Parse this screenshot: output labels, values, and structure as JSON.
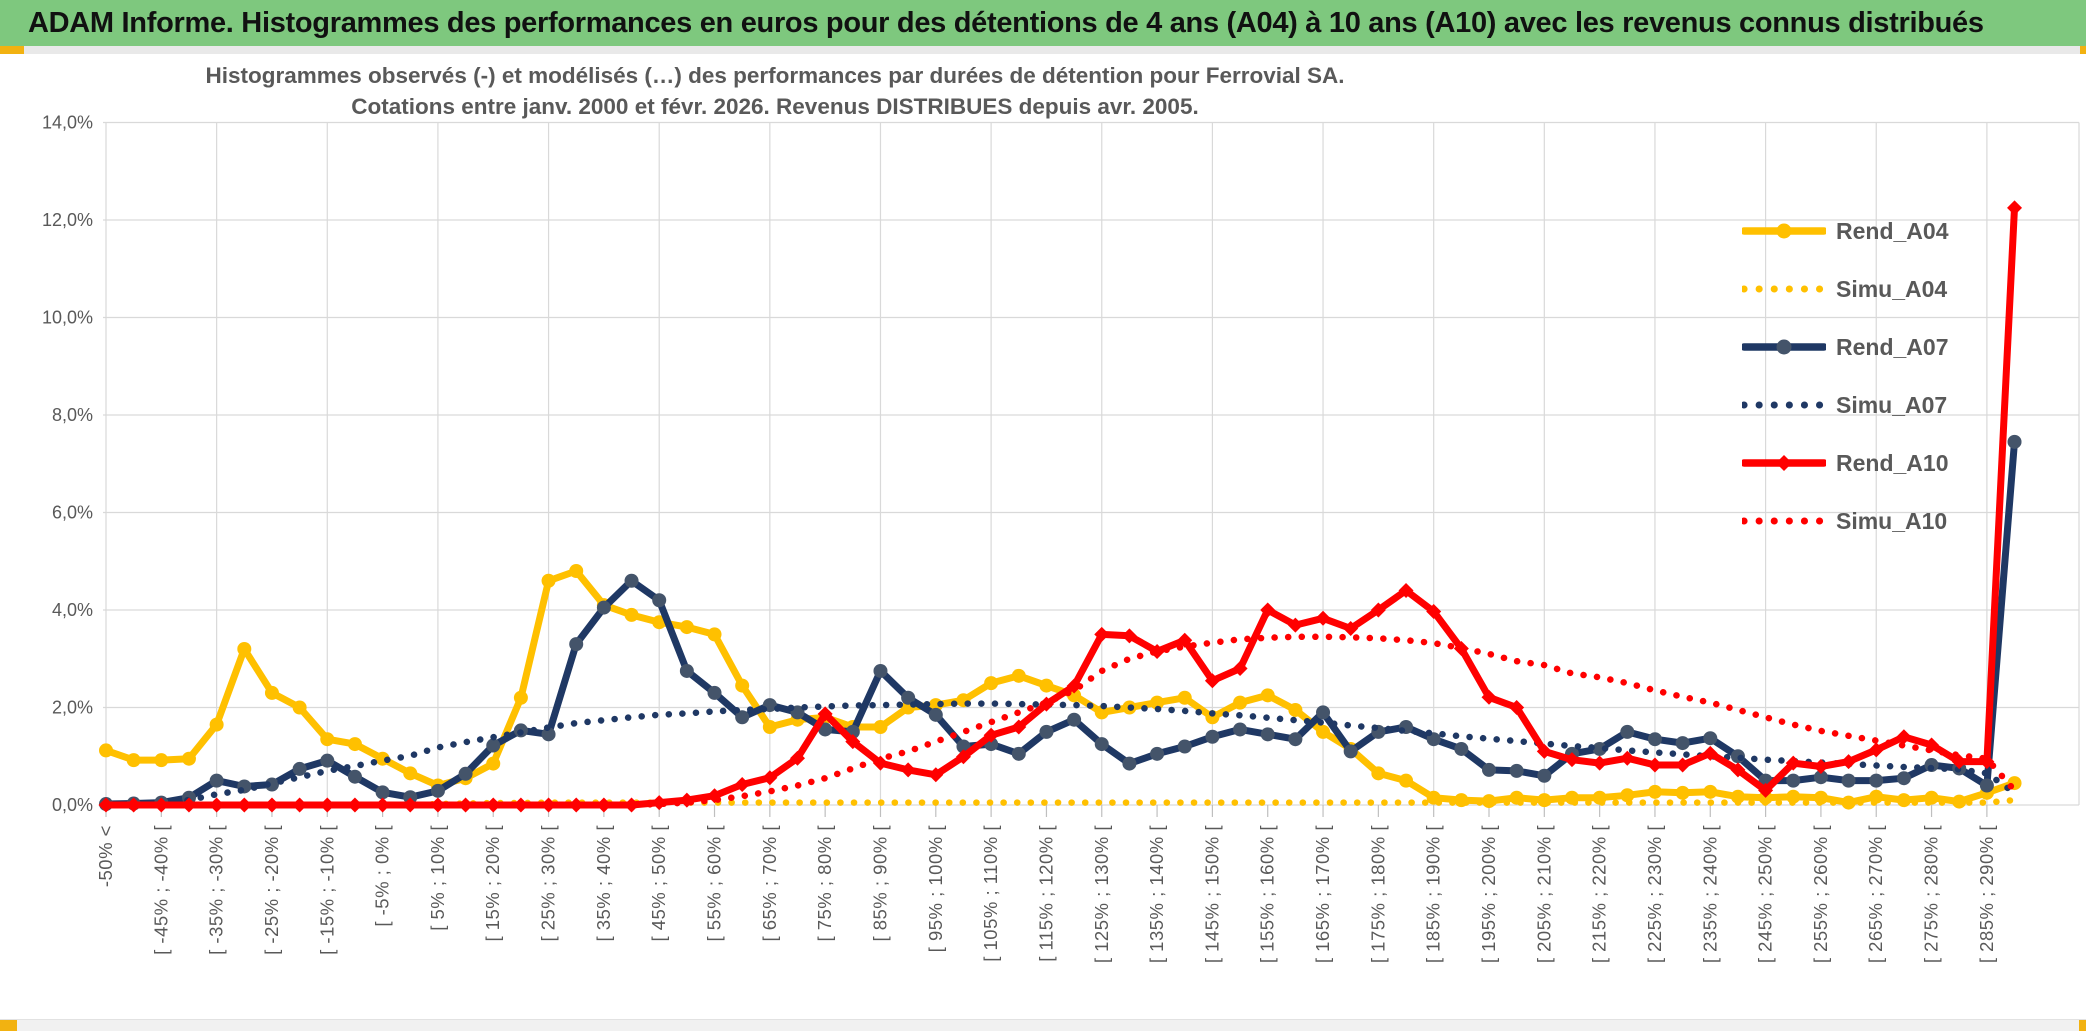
{
  "window": {
    "header_title": "ADAM Informe. Histogrammes des performances en euros pour des détentions de 4 ans (A04) à 10 ans (A10) avec les revenus connus distribués",
    "colors": {
      "header_green": "#7ec87e",
      "accent_gold": "#f2b211",
      "grid": "#d9d9d9",
      "axis_text": "#595959",
      "series_gold": "#FFC000",
      "series_navy": "#1F3864",
      "series_navy_marker": "#44546A",
      "series_red": "#FF0000"
    }
  },
  "chart_data": {
    "type": "line",
    "title_line1": "Histogrammes observés (-) et modélisés (…) des performances par durées de détention pour Ferrovial SA.",
    "title_line2": "Cotations entre janv. 2000 et févr. 2026. Revenus DISTRIBUES depuis avr. 2005.",
    "ylabel": "",
    "xlabel": "",
    "ylim": [
      0,
      14
    ],
    "y_tick_labels": [
      "0,0%",
      "2,0%",
      "4,0%",
      "6,0%",
      "8,0%",
      "10,0%",
      "12,0%",
      "14,0%"
    ],
    "grid": true,
    "legend_position": "right-upper",
    "categories": [
      "-50% <",
      "",
      "[ -45% ; -40% [",
      "",
      "[ -35% ; -30% [",
      "",
      "[ -25% ; -20% [",
      "",
      "[ -15% ; -10% [",
      "",
      "[ -5% ; 0% [",
      "",
      "[ 5% ; 10% [",
      "",
      "[ 15% ; 20% [",
      "",
      "[ 25% ; 30% [",
      "",
      "[ 35% ; 40% [",
      "",
      "[ 45% ; 50% [",
      "",
      "[ 55% ; 60% [",
      "",
      "[ 65% ; 70% [",
      "",
      "[ 75% ; 80% [",
      "",
      "[ 85% ; 90% [",
      "",
      "[ 95% ; 100% [",
      "",
      "[ 105% ; 110% [",
      "",
      "[ 115% ; 120% [",
      "",
      "[ 125% ; 130% [",
      "",
      "[ 135% ; 140% [",
      "",
      "[ 145% ; 150% [",
      "",
      "[ 155% ; 160% [",
      "",
      "[ 165% ; 170% [",
      "",
      "[ 175% ; 180% [",
      "",
      "[ 185% ; 190% [",
      "",
      "[ 195% ; 200% [",
      "",
      "[ 205% ; 210% [",
      "",
      "[ 215% ; 220% [",
      "",
      "[ 225% ; 230% [",
      "",
      "[ 235% ; 240% [",
      "",
      "[ 245% ; 250% [",
      "",
      "[ 255% ; 260% [",
      "",
      "[ 265% ; 270% [",
      "",
      "[ 275% ; 280% [",
      "",
      "[ 285% ; 290% [",
      ""
    ],
    "series": [
      {
        "name": "Rend_A04",
        "color": "#FFC000",
        "marker_color": "#FFC000",
        "style": "solid",
        "marker": "circle",
        "values": [
          1.12,
          0.92,
          0.92,
          0.95,
          1.65,
          3.2,
          2.3,
          2.0,
          1.35,
          1.25,
          0.95,
          0.65,
          0.4,
          0.55,
          0.85,
          2.2,
          4.6,
          4.8,
          4.1,
          3.9,
          3.75,
          3.65,
          3.5,
          2.45,
          1.6,
          1.75,
          1.8,
          1.6,
          1.6,
          2.0,
          2.05,
          2.15,
          2.5,
          2.65,
          2.45,
          2.25,
          1.9,
          2.0,
          2.1,
          2.2,
          1.8,
          2.1,
          2.25,
          1.95,
          1.5,
          1.15,
          0.65,
          0.5,
          0.15,
          0.1,
          0.08,
          0.15,
          0.1,
          0.15,
          0.15,
          0.2,
          0.27,
          0.25,
          0.27,
          0.17,
          0.15,
          0.17,
          0.15,
          0.05,
          0.17,
          0.1,
          0.15,
          0.07,
          0.25,
          0.45
        ]
      },
      {
        "name": "Simu_A04",
        "color": "#FFC000",
        "marker_color": "#FFC000",
        "style": "dotted",
        "marker": "none",
        "values": [
          0,
          0,
          0,
          0,
          0,
          0,
          0,
          0,
          0,
          0,
          0,
          0,
          0.02,
          0.03,
          0.04,
          0.04,
          0.05,
          0.05,
          0.05,
          0.05,
          0.05,
          0.05,
          0.05,
          0.05,
          0.05,
          0.05,
          0.05,
          0.05,
          0.05,
          0.05,
          0.05,
          0.05,
          0.05,
          0.05,
          0.05,
          0.05,
          0.05,
          0.05,
          0.05,
          0.05,
          0.05,
          0.05,
          0.05,
          0.05,
          0.05,
          0.05,
          0.05,
          0.05,
          0.05,
          0.05,
          0.05,
          0.05,
          0.05,
          0.05,
          0.05,
          0.05,
          0.05,
          0.05,
          0.05,
          0.05,
          0.05,
          0.05,
          0.05,
          0.05,
          0.05,
          0.05,
          0.05,
          0.05,
          0.05,
          0.1
        ]
      },
      {
        "name": "Rend_A07",
        "color": "#1F3864",
        "marker_color": "#44546A",
        "style": "solid",
        "marker": "circle",
        "values": [
          0.02,
          0.03,
          0.05,
          0.15,
          0.5,
          0.38,
          0.42,
          0.74,
          0.91,
          0.58,
          0.26,
          0.16,
          0.29,
          0.64,
          1.22,
          1.53,
          1.45,
          3.3,
          4.05,
          4.6,
          4.2,
          2.75,
          2.3,
          1.8,
          2.05,
          1.9,
          1.55,
          1.5,
          2.75,
          2.2,
          1.85,
          1.2,
          1.25,
          1.05,
          1.5,
          1.75,
          1.25,
          0.85,
          1.05,
          1.2,
          1.4,
          1.55,
          1.45,
          1.35,
          1.9,
          1.1,
          1.5,
          1.6,
          1.35,
          1.15,
          0.72,
          0.7,
          0.6,
          1.05,
          1.15,
          1.5,
          1.35,
          1.27,
          1.37,
          1.0,
          0.5,
          0.5,
          0.57,
          0.5,
          0.5,
          0.55,
          0.82,
          0.75,
          0.4,
          7.45
        ]
      },
      {
        "name": "Simu_A07",
        "color": "#1F3864",
        "marker_color": "#1F3864",
        "style": "dotted",
        "marker": "none",
        "values": [
          0.0,
          0.01,
          0.04,
          0.1,
          0.22,
          0.31,
          0.44,
          0.57,
          0.7,
          0.8,
          0.91,
          1.01,
          1.18,
          1.29,
          1.39,
          1.49,
          1.59,
          1.68,
          1.74,
          1.8,
          1.85,
          1.88,
          1.92,
          1.95,
          1.97,
          2.0,
          2.02,
          2.04,
          2.05,
          2.06,
          2.07,
          2.08,
          2.08,
          2.07,
          2.06,
          2.05,
          2.03,
          2.0,
          1.97,
          1.93,
          1.88,
          1.84,
          1.79,
          1.74,
          1.69,
          1.63,
          1.58,
          1.52,
          1.47,
          1.41,
          1.36,
          1.31,
          1.26,
          1.21,
          1.17,
          1.12,
          1.08,
          1.04,
          1.0,
          0.97,
          0.93,
          0.9,
          0.87,
          0.84,
          0.81,
          0.78,
          0.76,
          0.73,
          0.65,
          0.25
        ]
      },
      {
        "name": "Rend_A10",
        "color": "#FF0000",
        "marker_color": "#FF0000",
        "style": "solid",
        "marker": "diamond",
        "values": [
          0,
          0,
          0,
          0,
          0,
          0,
          0,
          0,
          0,
          0,
          0,
          0,
          0,
          0,
          0,
          0,
          0,
          0,
          0,
          0,
          0.05,
          0.1,
          0.19,
          0.42,
          0.56,
          0.96,
          1.87,
          1.3,
          0.86,
          0.72,
          0.62,
          0.99,
          1.43,
          1.6,
          2.07,
          2.44,
          3.5,
          3.47,
          3.15,
          3.38,
          2.55,
          2.8,
          4.0,
          3.69,
          3.83,
          3.62,
          4.0,
          4.4,
          3.97,
          3.21,
          2.21,
          2.0,
          1.1,
          0.93,
          0.86,
          0.96,
          0.82,
          0.82,
          1.06,
          0.72,
          0.3,
          0.86,
          0.79,
          0.89,
          1.13,
          1.4,
          1.23,
          0.89,
          0.89,
          12.25
        ]
      },
      {
        "name": "Simu_A10",
        "color": "#FF0000",
        "marker_color": "#FF0000",
        "style": "dotted",
        "marker": "none",
        "values": [
          0,
          0,
          0,
          0,
          0,
          0,
          0,
          0,
          0,
          0,
          0,
          0,
          0,
          0,
          0,
          0,
          0,
          0,
          0,
          0,
          0.02,
          0.05,
          0.1,
          0.18,
          0.28,
          0.4,
          0.55,
          0.75,
          0.95,
          1.1,
          1.3,
          1.5,
          1.7,
          1.9,
          2.1,
          2.35,
          2.75,
          3.0,
          3.15,
          3.25,
          3.33,
          3.4,
          3.43,
          3.45,
          3.45,
          3.44,
          3.42,
          3.38,
          3.32,
          3.22,
          3.1,
          2.95,
          2.87,
          2.7,
          2.62,
          2.5,
          2.35,
          2.22,
          2.1,
          1.95,
          1.8,
          1.65,
          1.52,
          1.42,
          1.32,
          1.22,
          1.12,
          1.02,
          0.95,
          0.3
        ]
      }
    ]
  }
}
